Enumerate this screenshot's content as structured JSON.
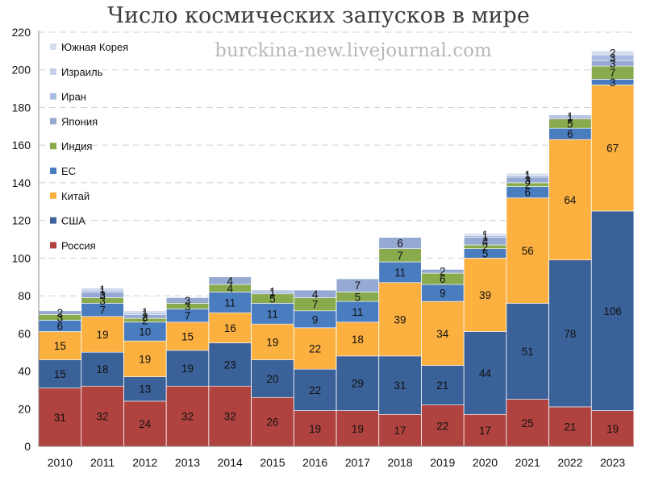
{
  "header": {
    "title": "Число космических запусков в мире",
    "watermark": "burckina-new.livejournal.com"
  },
  "chart_data": {
    "type": "bar",
    "stacked": true,
    "title": "Число космических запусков в мире",
    "ylim": [
      0,
      220
    ],
    "yticks": [
      0,
      20,
      40,
      60,
      80,
      100,
      120,
      140,
      160,
      180,
      200,
      220
    ],
    "grid": true,
    "legend_position": "top-left",
    "categories": [
      "2010",
      "2011",
      "2012",
      "2013",
      "2014",
      "2015",
      "2016",
      "2017",
      "2018",
      "2019",
      "2020",
      "2021",
      "2022",
      "2023"
    ],
    "series": [
      {
        "name": "Россия",
        "color": "#b0433f",
        "values": [
          31,
          32,
          24,
          32,
          32,
          26,
          19,
          19,
          17,
          22,
          17,
          25,
          21,
          19
        ]
      },
      {
        "name": "США",
        "color": "#3b6199",
        "values": [
          15,
          18,
          13,
          19,
          23,
          20,
          22,
          29,
          31,
          21,
          44,
          51,
          78,
          106
        ]
      },
      {
        "name": "Китай",
        "color": "#fbb040",
        "values": [
          15,
          19,
          19,
          15,
          16,
          19,
          22,
          18,
          39,
          34,
          39,
          56,
          64,
          67
        ]
      },
      {
        "name": "ЕС",
        "color": "#4a7cc0",
        "values": [
          6,
          7,
          10,
          7,
          11,
          11,
          9,
          11,
          11,
          9,
          5,
          6,
          6,
          3
        ]
      },
      {
        "name": "Индия",
        "color": "#8aaa4e",
        "values": [
          3,
          3,
          2,
          3,
          4,
          5,
          7,
          5,
          7,
          6,
          2,
          2,
          5,
          7
        ]
      },
      {
        "name": "Япония",
        "color": "#95a9d2",
        "values": [
          2,
          3,
          2,
          3,
          4,
          1,
          4,
          7,
          6,
          2,
          4,
          3,
          1,
          3
        ]
      },
      {
        "name": "Иран",
        "color": "#a9bbe0",
        "values": [
          0,
          1,
          1,
          0,
          0,
          1,
          0,
          0,
          0,
          0,
          1,
          1,
          1,
          3
        ]
      },
      {
        "name": "Израиль",
        "color": "#c4cee6",
        "values": [
          0,
          1,
          0,
          0,
          0,
          0,
          0,
          0,
          0,
          0,
          0,
          0,
          0,
          0
        ]
      },
      {
        "name": "Южная Корея",
        "color": "#d4dbed",
        "values": [
          0,
          0,
          1,
          0,
          0,
          0,
          0,
          0,
          0,
          0,
          1,
          1,
          0,
          2
        ]
      }
    ]
  }
}
